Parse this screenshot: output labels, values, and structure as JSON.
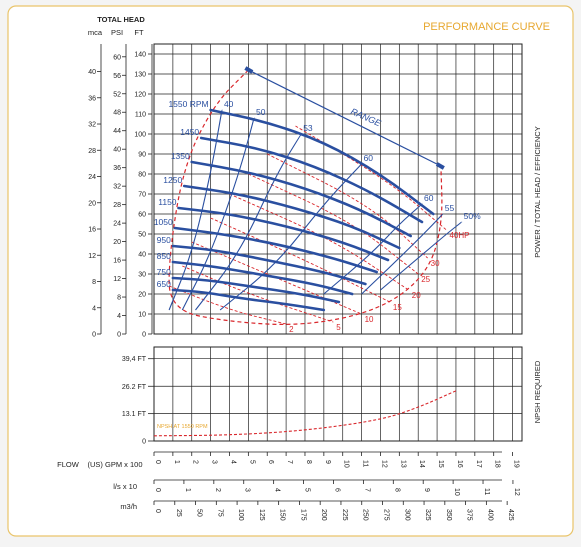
{
  "title": "PERFORMANCE CURVE",
  "colors": {
    "accent": "#e7a830",
    "curve_blue": "#2a4fa0",
    "limit_red": "#d9262b",
    "grid": "#222222",
    "panel_border": "#e9c46a"
  },
  "head_axis": {
    "header": "TOTAL HEAD",
    "units": [
      "mca",
      "PSI",
      "FT"
    ],
    "ft_ticks": [
      "140",
      "130",
      "120",
      "110",
      "100",
      "90",
      "80",
      "70",
      "60",
      "50",
      "40",
      "30",
      "20",
      "10",
      "0"
    ],
    "psi_ticks": [
      "60",
      "56",
      "52",
      "48",
      "44",
      "40",
      "36",
      "32",
      "28",
      "24",
      "20",
      "16",
      "12",
      "8",
      "4",
      "0"
    ],
    "mca_ticks": [
      "40",
      "36",
      "32",
      "28",
      "24",
      "20",
      "16",
      "12",
      "8",
      "4",
      "0"
    ]
  },
  "npsh_axis": {
    "ticks": [
      "39,4 FT",
      "26.2 FT",
      "13.1 FT",
      "0"
    ]
  },
  "side_labels": {
    "upper": "POWER / TOTAL HEAD / EFFICIENCY",
    "lower": "NPSH REQUIRED"
  },
  "flow_axis": {
    "label": "FLOW",
    "gpm_label": "(US) GPM x 100",
    "gpm_ticks": [
      "0",
      "1",
      "2",
      "3",
      "4",
      "5",
      "6",
      "7",
      "8",
      "9",
      "10",
      "11",
      "12",
      "13",
      "14",
      "15",
      "16",
      "17",
      "18",
      "19"
    ],
    "ls_label": "l/s x 10",
    "ls_ticks": [
      "0",
      "1",
      "2",
      "3",
      "4",
      "5",
      "6",
      "7",
      "8",
      "9",
      "10",
      "11",
      "12"
    ],
    "m3h_label": "m3/h",
    "m3h_ticks": [
      "0",
      "25",
      "50",
      "75",
      "100",
      "125",
      "150",
      "175",
      "200",
      "225",
      "250",
      "275",
      "300",
      "325",
      "350",
      "375",
      "400",
      "425"
    ]
  },
  "chart_data": {
    "type": "line",
    "title": "PERFORMANCE CURVE",
    "x_unit": "GPM x 100",
    "y_unit": "FT",
    "xlim": [
      0,
      19.5
    ],
    "ylim": [
      0,
      145
    ],
    "speed_curves": [
      {
        "label": "1550 RPM",
        "x": [
          3.0,
          6.0,
          9.0,
          12.0,
          14.8
        ],
        "y": [
          112,
          106,
          96,
          80,
          60
        ]
      },
      {
        "label": "1450",
        "x": [
          2.5,
          5.5,
          8.5,
          11.5,
          14.2
        ],
        "y": [
          98,
          93,
          84,
          71,
          56
        ]
      },
      {
        "label": "1350",
        "x": [
          2.0,
          5.0,
          8.0,
          11.0,
          13.6
        ],
        "y": [
          86,
          81,
          73,
          62,
          49
        ]
      },
      {
        "label": "1250",
        "x": [
          1.6,
          4.5,
          7.5,
          10.5,
          13.0
        ],
        "y": [
          74,
          70,
          63,
          54,
          43
        ]
      },
      {
        "label": "1150",
        "x": [
          1.3,
          4.0,
          7.0,
          10.0,
          12.4
        ],
        "y": [
          63,
          60,
          54,
          46,
          37
        ]
      },
      {
        "label": "1050",
        "x": [
          1.1,
          3.6,
          6.5,
          9.5,
          11.8
        ],
        "y": [
          53,
          50,
          45,
          38,
          31
        ]
      },
      {
        "label": "950",
        "x": [
          1.0,
          3.2,
          6.0,
          9.0,
          11.2
        ],
        "y": [
          44,
          42,
          37,
          31,
          25
        ]
      },
      {
        "label": "850",
        "x": [
          1.0,
          3.0,
          5.5,
          8.5,
          10.5
        ],
        "y": [
          36,
          34,
          30,
          25,
          20
        ]
      },
      {
        "label": "750",
        "x": [
          1.0,
          2.8,
          5.0,
          7.8,
          9.8
        ],
        "y": [
          28,
          27,
          24,
          20,
          16
        ]
      },
      {
        "label": "650",
        "x": [
          1.0,
          2.6,
          4.5,
          7.0,
          9.0
        ],
        "y": [
          22,
          21,
          18,
          15,
          12
        ]
      }
    ],
    "efficiency_curves": [
      {
        "label": "40",
        "x": [
          0.8,
          2.0,
          3.0,
          3.6
        ],
        "y": [
          12,
          40,
          80,
          112
        ]
      },
      {
        "label": "50",
        "x": [
          1.5,
          3.0,
          4.5,
          5.3
        ],
        "y": [
          12,
          40,
          80,
          108
        ]
      },
      {
        "label": "53",
        "x": [
          2.2,
          4.5,
          6.5,
          7.8
        ],
        "y": [
          12,
          40,
          80,
          100
        ]
      },
      {
        "label": "60",
        "x": [
          3.5,
          6.5,
          9.0,
          11.0
        ],
        "y": [
          12,
          35,
          65,
          85
        ]
      },
      {
        "label": "60",
        "x": [
          9.0,
          11.5,
          13.0,
          14.2
        ],
        "y": [
          20,
          40,
          55,
          65
        ]
      },
      {
        "label": "55",
        "x": [
          11.0,
          13.0,
          14.5,
          15.3
        ],
        "y": [
          20,
          38,
          52,
          60
        ]
      },
      {
        "label": "50%",
        "x": [
          12.0,
          14.0,
          15.5,
          16.3
        ],
        "y": [
          22,
          38,
          50,
          56
        ]
      }
    ],
    "power_curves": [
      {
        "label": "2",
        "x": [
          0.8,
          4.0,
          7.0
        ],
        "y": [
          24,
          12,
          5
        ]
      },
      {
        "label": "5",
        "x": [
          1.5,
          5.0,
          9.5
        ],
        "y": [
          34,
          20,
          6
        ]
      },
      {
        "label": "10",
        "x": [
          2.0,
          6.5,
          11.0
        ],
        "y": [
          46,
          28,
          10
        ]
      },
      {
        "label": "15",
        "x": [
          3.0,
          8.0,
          12.5
        ],
        "y": [
          58,
          37,
          16
        ]
      },
      {
        "label": "20",
        "x": [
          4.0,
          9.5,
          13.5
        ],
        "y": [
          70,
          47,
          22
        ]
      },
      {
        "label": "25",
        "x": [
          5.0,
          10.5,
          14.0
        ],
        "y": [
          80,
          56,
          30
        ]
      },
      {
        "label": "30",
        "x": [
          6.0,
          11.5,
          14.5
        ],
        "y": [
          90,
          64,
          38
        ]
      },
      {
        "label": "40HP",
        "x": [
          7.5,
          12.5,
          15.5
        ],
        "y": [
          104,
          76,
          52
        ]
      }
    ],
    "range_label": "RANGE",
    "range_line": {
      "x": [
        5.0,
        15.2
      ],
      "y": [
        132,
        84
      ]
    },
    "operating_boundary": {
      "x": [
        5.0,
        3.2,
        1.6,
        0.8,
        0.8,
        4.0,
        8.0,
        12.0,
        14.5,
        15.3,
        15.2
      ],
      "y": [
        132,
        115,
        85,
        40,
        12,
        6,
        4,
        12,
        30,
        55,
        84
      ]
    },
    "npsh_label": "NPSH AT 1550 RPM",
    "npsh_ft": {
      "x": [
        0,
        4,
        8,
        12,
        14,
        16
      ],
      "y": [
        2.5,
        2.8,
        5.0,
        10.0,
        16.0,
        24.0
      ]
    }
  }
}
